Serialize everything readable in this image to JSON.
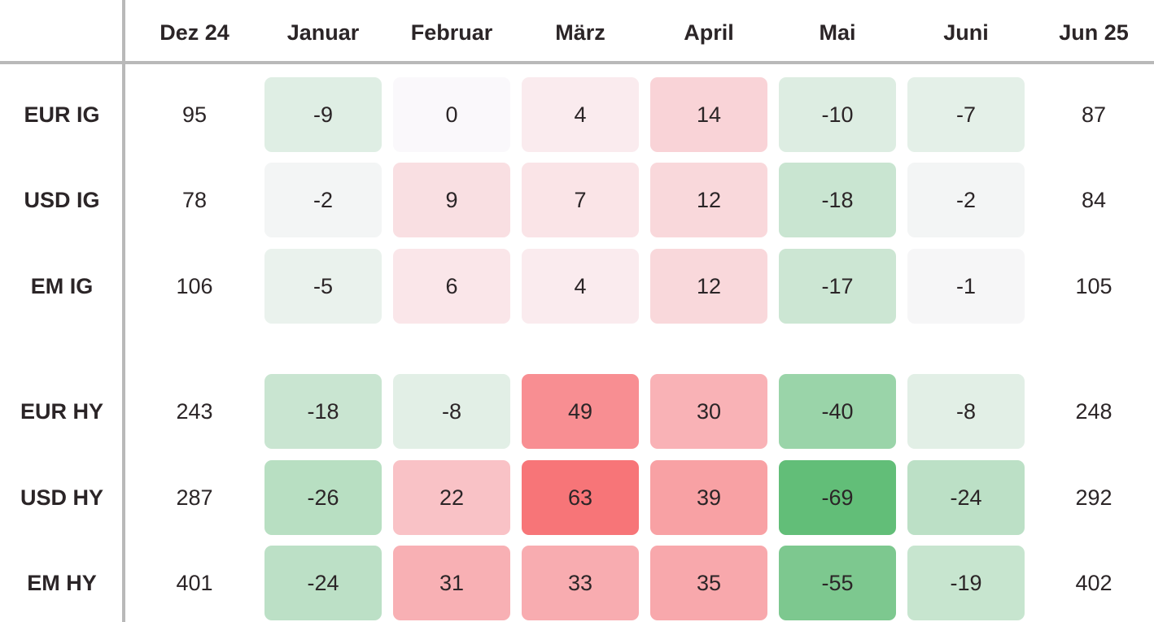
{
  "chart_data": {
    "type": "heatmap",
    "columns": [
      "Dez 24",
      "Januar",
      "Februar",
      "März",
      "April",
      "Mai",
      "Juni",
      "Jun 25"
    ],
    "rows": [
      {
        "label": "EUR IG",
        "start": 95,
        "changes": [
          -9,
          0,
          4,
          14,
          -10,
          -7
        ],
        "end": 87
      },
      {
        "label": "USD IG",
        "start": 78,
        "changes": [
          -2,
          9,
          7,
          12,
          -18,
          -2
        ],
        "end": 84
      },
      {
        "label": "EM IG",
        "start": 106,
        "changes": [
          -5,
          6,
          4,
          12,
          -17,
          -1
        ],
        "end": 105
      },
      {
        "label": "EUR HY",
        "start": 243,
        "changes": [
          -18,
          -8,
          49,
          30,
          -40,
          -8
        ],
        "end": 248
      },
      {
        "label": "USD HY",
        "start": 287,
        "changes": [
          -26,
          22,
          63,
          39,
          -69,
          -24
        ],
        "end": 292
      },
      {
        "label": "EM HY",
        "start": 401,
        "changes": [
          -24,
          31,
          33,
          35,
          -55,
          -19
        ],
        "end": 402
      }
    ],
    "colors": {
      "positive": "#f76a6e",
      "negative": "#62be78",
      "neutral": "#faf8fb",
      "text": "#2b2527",
      "grid": "#b9b9b9"
    }
  }
}
